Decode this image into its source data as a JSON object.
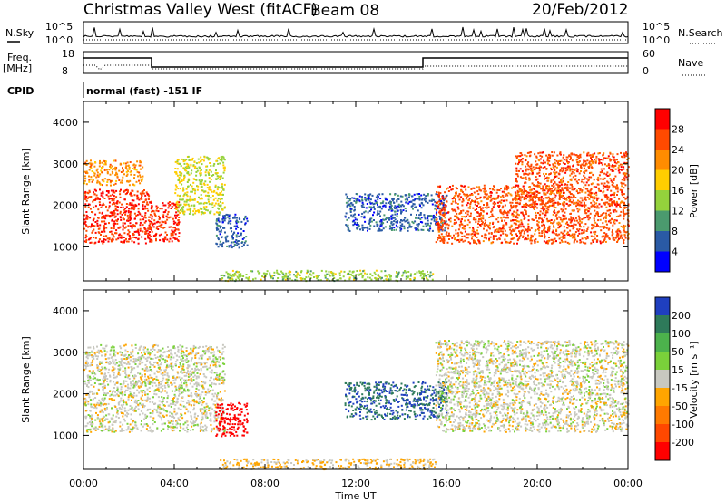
{
  "header": {
    "station": "Christmas Valley West (fitACF)",
    "beam": "Beam 08",
    "date": "20/Feb/2012"
  },
  "strip": {
    "nsky_label": "N.Sky",
    "nsearch_label": "N.Search",
    "freq_label": "Freq.",
    "freq_unit": "[MHz]",
    "nave_label": "Nave",
    "cpid_label": "CPID",
    "cpid_text": "normal (fast) -151 IF",
    "nsky_ticks": [
      "10^5",
      "10^0"
    ],
    "nsearch_ticks": [
      "10^5",
      "10^0"
    ],
    "freq_ticks": [
      "18",
      "8"
    ],
    "nave_ticks": [
      "60",
      "0"
    ]
  },
  "axes": {
    "xlabel": "Time UT",
    "ylabel": "Slant Range [km]",
    "x_ticks": [
      "00:00",
      "04:00",
      "08:00",
      "12:00",
      "16:00",
      "20:00",
      "00:00"
    ],
    "y_ticks": [
      "4000",
      "3000",
      "2000",
      "1000"
    ]
  },
  "power_scale": {
    "label": "Power [dB]",
    "ticks": [
      "28",
      "24",
      "20",
      "16",
      "12",
      "8",
      "4"
    ],
    "colors": [
      "#ff0000",
      "#ff4a00",
      "#ff8c00",
      "#ffcd00",
      "#94d23c",
      "#4b9a6e",
      "#2a5aa5",
      "#0000ff"
    ]
  },
  "velocity_scale": {
    "label": "Velocity [m s⁻¹]",
    "ticks": [
      "200",
      "100",
      "50",
      "15",
      "-15",
      "-50",
      "-100",
      "-200"
    ],
    "colors": [
      "#1f3fbf",
      "#2e7a5a",
      "#4cb24c",
      "#7ad13a",
      "#c8c8c0",
      "#ffa500",
      "#ff7a00",
      "#ff4800",
      "#ff0000"
    ]
  },
  "chart_data": [
    {
      "type": "heatmap",
      "title": "",
      "xlabel": "Time UT",
      "ylabel": "Slant Range [km]",
      "xlim": [
        0,
        24
      ],
      "ylim": [
        180,
        4500
      ],
      "colorbar": {
        "label": "Power [dB]",
        "range": [
          0,
          32
        ]
      },
      "regions": [
        {
          "t": [
            0.0,
            3.0
          ],
          "r": [
            1100,
            2400
          ],
          "value": 28
        },
        {
          "t": [
            0.0,
            2.6
          ],
          "r": [
            2500,
            3100
          ],
          "value": 22
        },
        {
          "t": [
            2.8,
            4.2
          ],
          "r": [
            1150,
            2100
          ],
          "value": 28
        },
        {
          "t": [
            4.0,
            6.2
          ],
          "r": [
            1800,
            3200
          ],
          "value": 16
        },
        {
          "t": [
            5.8,
            7.2
          ],
          "r": [
            1000,
            1800
          ],
          "value": 6
        },
        {
          "t": [
            6.0,
            15.5
          ],
          "r": [
            200,
            450
          ],
          "value": 14
        },
        {
          "t": [
            11.5,
            16.0
          ],
          "r": [
            1400,
            2300
          ],
          "value": 6
        },
        {
          "t": [
            15.5,
            21.5
          ],
          "r": [
            1100,
            2500
          ],
          "value": 26
        },
        {
          "t": [
            19.0,
            24.0
          ],
          "r": [
            2000,
            3300
          ],
          "value": 26
        },
        {
          "t": [
            21.5,
            24.0
          ],
          "r": [
            1100,
            2100
          ],
          "value": 26
        }
      ]
    },
    {
      "type": "heatmap",
      "title": "",
      "xlabel": "Time UT",
      "ylabel": "Slant Range [km]",
      "xlim": [
        0,
        24
      ],
      "ylim": [
        180,
        4500
      ],
      "colorbar": {
        "label": "Velocity [m s⁻¹]",
        "range": [
          -200,
          200
        ]
      },
      "regions": [
        {
          "t": [
            0.0,
            6.2
          ],
          "r": [
            1100,
            3200
          ],
          "value": 0
        },
        {
          "t": [
            5.8,
            7.2
          ],
          "r": [
            1000,
            1800
          ],
          "value": -200
        },
        {
          "t": [
            6.0,
            15.5
          ],
          "r": [
            200,
            450
          ],
          "value": -30
        },
        {
          "t": [
            11.5,
            16.0
          ],
          "r": [
            1400,
            2300
          ],
          "value": 150
        },
        {
          "t": [
            15.5,
            24.0
          ],
          "r": [
            1100,
            3300
          ],
          "value": 0
        }
      ]
    }
  ]
}
